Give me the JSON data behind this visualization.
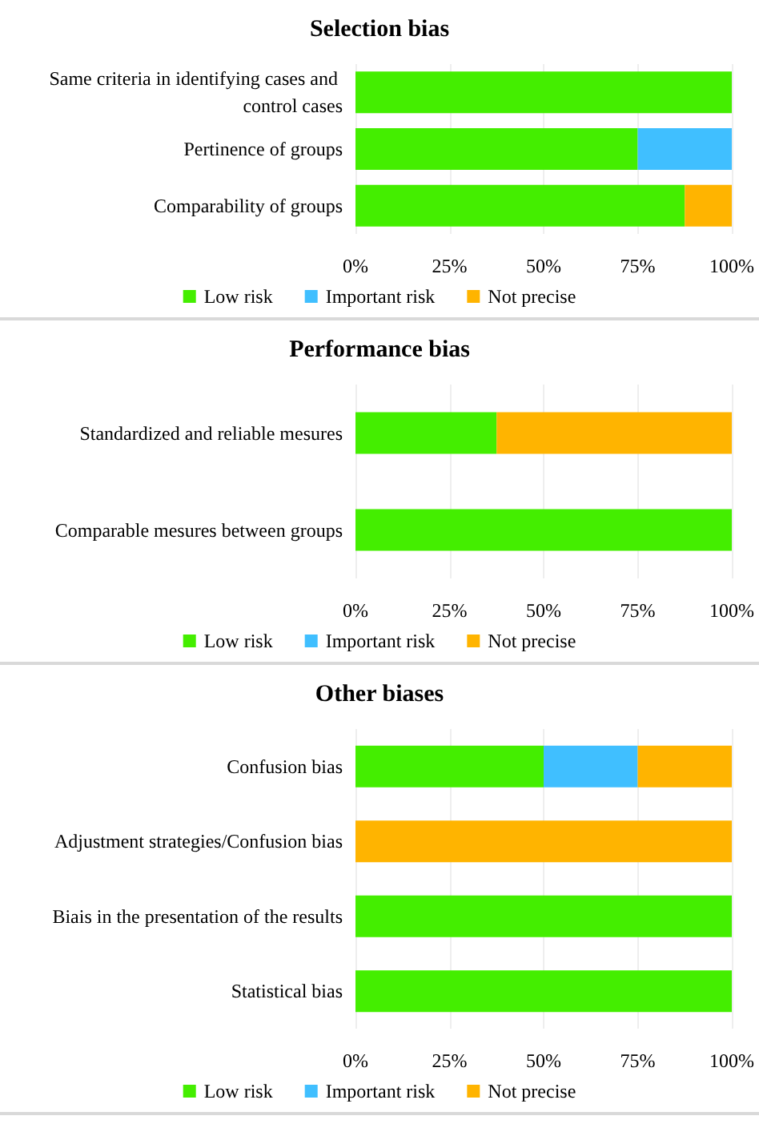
{
  "chart_data": [
    {
      "type": "bar",
      "title": "Selection bias",
      "orientation": "horizontal",
      "stacked": true,
      "categories": [
        "Same criteria in identifying cases and control cases",
        "Pertinence of groups",
        "Comparability of groups"
      ],
      "series": [
        {
          "name": "Low risk",
          "color": "#44ee00",
          "values": [
            100,
            75,
            87.5
          ]
        },
        {
          "name": "Important risk",
          "color": "#40bfff",
          "values": [
            0,
            25,
            0
          ]
        },
        {
          "name": "Not precise",
          "color": "#ffb400",
          "values": [
            0,
            0,
            12.5
          ]
        }
      ],
      "xlim": [
        0,
        100
      ],
      "xticks": [
        {
          "value": 0,
          "label": "0%"
        },
        {
          "value": 25,
          "label": "25%"
        },
        {
          "value": 50,
          "label": "50%"
        },
        {
          "value": 75,
          "label": "75%"
        },
        {
          "value": 100,
          "label": "100%"
        }
      ],
      "grid": "x",
      "legend": "bottom"
    },
    {
      "type": "bar",
      "title": "Performance bias",
      "orientation": "horizontal",
      "stacked": true,
      "categories": [
        "Standardized and reliable mesures",
        "Comparable mesures between groups"
      ],
      "series": [
        {
          "name": "Low risk",
          "color": "#44ee00",
          "values": [
            37.5,
            100
          ]
        },
        {
          "name": "Important risk",
          "color": "#40bfff",
          "values": [
            0,
            0
          ]
        },
        {
          "name": "Not precise",
          "color": "#ffb400",
          "values": [
            62.5,
            0
          ]
        }
      ],
      "xlim": [
        0,
        100
      ],
      "xticks": [
        {
          "value": 0,
          "label": "0%"
        },
        {
          "value": 25,
          "label": "25%"
        },
        {
          "value": 50,
          "label": "50%"
        },
        {
          "value": 75,
          "label": "75%"
        },
        {
          "value": 100,
          "label": "100%"
        }
      ],
      "grid": "x",
      "legend": "bottom"
    },
    {
      "type": "bar",
      "title": "Other biases",
      "orientation": "horizontal",
      "stacked": true,
      "categories": [
        "Confusion bias",
        "Adjustment strategies/Confusion bias",
        "Biais in the presentation of the results",
        "Statistical bias"
      ],
      "series": [
        {
          "name": "Low risk",
          "color": "#44ee00",
          "values": [
            50,
            0,
            100,
            100
          ]
        },
        {
          "name": "Important risk",
          "color": "#40bfff",
          "values": [
            25,
            0,
            0,
            0
          ]
        },
        {
          "name": "Not precise",
          "color": "#ffb400",
          "values": [
            25,
            100,
            0,
            0
          ]
        }
      ],
      "xlim": [
        0,
        100
      ],
      "xticks": [
        {
          "value": 0,
          "label": "0%"
        },
        {
          "value": 25,
          "label": "25%"
        },
        {
          "value": 50,
          "label": "50%"
        },
        {
          "value": 75,
          "label": "75%"
        },
        {
          "value": 100,
          "label": "100%"
        }
      ],
      "grid": "x",
      "legend": "bottom"
    }
  ]
}
